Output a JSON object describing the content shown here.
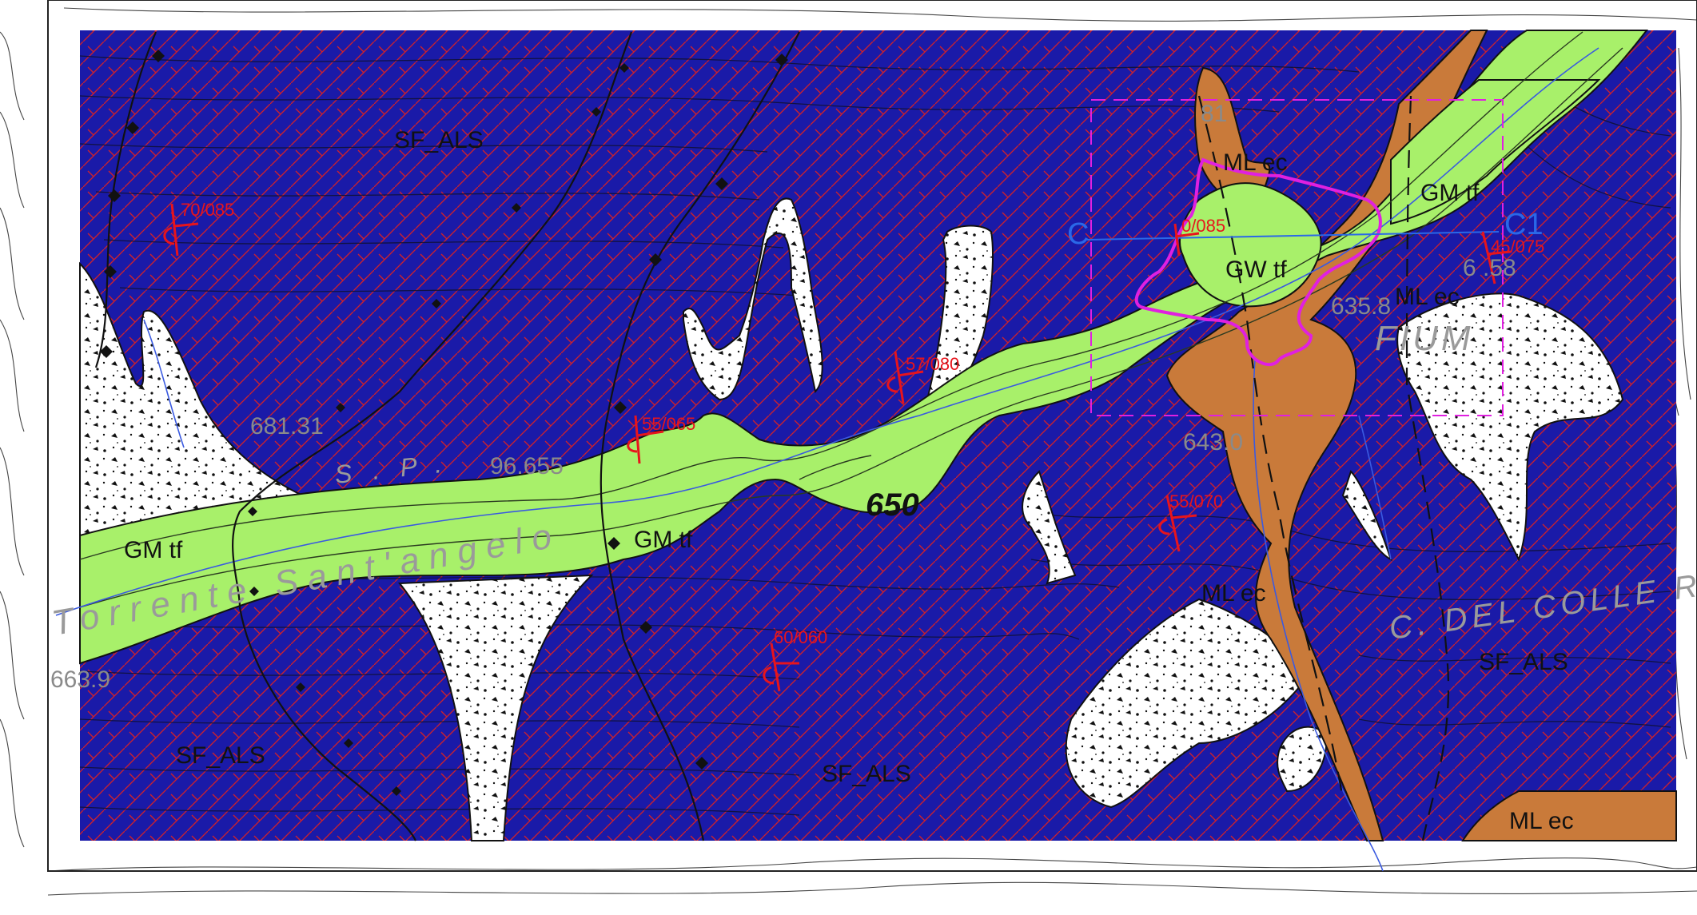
{
  "map": {
    "colors": {
      "bedrock": "#1a1aa8",
      "bedrock_hatch": "#d0212a",
      "gravel": "#a8f06a",
      "silt": "#c97a3a",
      "debris": "#ffffff",
      "study_area": "#e020e0",
      "section": "#2a68e8",
      "dip": "#e8141c"
    },
    "units": [
      {
        "code": "SF_ALS",
        "color": "bedrock"
      },
      {
        "code": "GM tf",
        "color": "gravel"
      },
      {
        "code": "GW tf",
        "color": "gravel"
      },
      {
        "code": "ML ec",
        "color": "silt"
      }
    ],
    "labels": {
      "sf_als_1": "SF_ALS",
      "sf_als_2": "SF_ALS",
      "sf_als_3": "SF_ALS",
      "sf_als_4": "SF_ALS",
      "gm_tf_1": "GM tf",
      "gm_tf_2": "GM tf",
      "gm_tf_3": "GM tf",
      "gw_tf": "GW tf",
      "ml_ec_1": "ML ec",
      "ml_ec_2": "ML ec",
      "ml_ec_3": "ML ec",
      "ml_ec_4": "ML ec"
    },
    "dips": {
      "d1": "70/085",
      "d2": "55/065",
      "d3": "57/080",
      "d4": "60/060",
      "d5": "55/070",
      "d6": "45/075",
      "d7": "0/085"
    },
    "elevations": {
      "e1": "681.31",
      "e2": "96.655",
      "e3": "663.9",
      "e4": "635.8",
      "e5": "643.0",
      "e6": "6 .58",
      "e7": "81"
    },
    "contour_label": "650",
    "place_names": {
      "river": "Torrente Sant'angelo",
      "colle": "C. DEL COLLE ROSSO",
      "fiume": "FIUM",
      "sp": "S.P."
    },
    "section": {
      "start": "C",
      "end": "C1"
    }
  }
}
